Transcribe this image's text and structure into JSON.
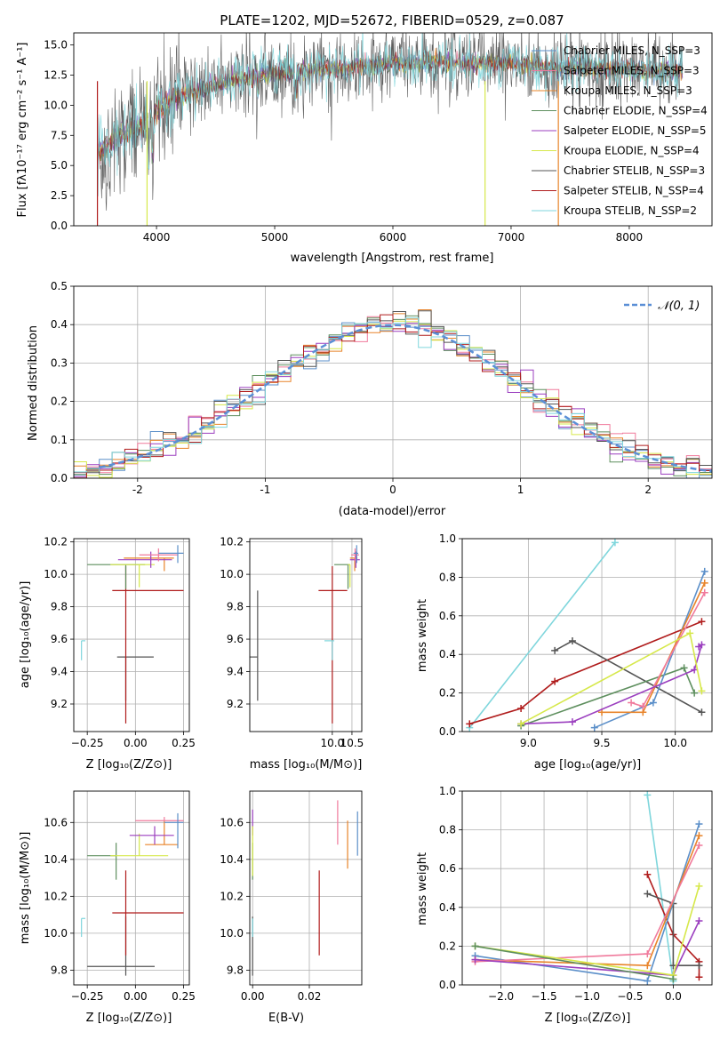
{
  "chart_data": [
    {
      "id": "spectrum",
      "type": "line",
      "title": "PLATE=1202, MJD=52672, FIBERID=0529, z=0.087",
      "xlabel": "wavelength [Angstrom, rest frame]",
      "ylabel": "Flux [fλ10⁻¹⁷ erg cm⁻² s⁻¹ A⁻¹]",
      "xlim": [
        3300,
        8700
      ],
      "ylim": [
        0,
        16
      ],
      "xticks": [
        4000,
        5000,
        6000,
        7000,
        8000
      ],
      "yticks": [
        0.0,
        2.5,
        5.0,
        7.5,
        10.0,
        12.5,
        15.0
      ],
      "legend_position": "right",
      "continuum": [
        [
          3500,
          6.0
        ],
        [
          3700,
          7.5
        ],
        [
          3900,
          8.5
        ],
        [
          4000,
          9.5
        ],
        [
          4200,
          10.8
        ],
        [
          4400,
          11.3
        ],
        [
          4600,
          12.0
        ],
        [
          4800,
          12.4
        ],
        [
          5000,
          12.7
        ],
        [
          5200,
          12.8
        ],
        [
          5400,
          13.0
        ],
        [
          5600,
          13.1
        ],
        [
          5800,
          13.3
        ],
        [
          6000,
          13.5
        ],
        [
          6200,
          13.5
        ],
        [
          6400,
          13.7
        ],
        [
          6600,
          13.4
        ],
        [
          6800,
          13.5
        ],
        [
          7000,
          13.5
        ],
        [
          7200,
          13.3
        ],
        [
          7400,
          13.0
        ],
        [
          7600,
          13.2
        ],
        [
          7800,
          13.0
        ],
        [
          8000,
          13.0
        ],
        [
          8200,
          12.8
        ],
        [
          8400,
          12.9
        ]
      ],
      "series": [
        {
          "name": "Chabrier MILES, N_SSP=3",
          "color": "#5b8fc9"
        },
        {
          "name": "Salpeter MILES, N_SSP=3",
          "color": "#f07a9c"
        },
        {
          "name": "Kroupa MILES, N_SSP=3",
          "color": "#e8842a"
        },
        {
          "name": "Chabrier ELODIE, N_SSP=4",
          "color": "#5e8f5e"
        },
        {
          "name": "Salpeter ELODIE, N_SSP=5",
          "color": "#9b3fbf"
        },
        {
          "name": "Kroupa ELODIE, N_SSP=4",
          "color": "#d6e84a"
        },
        {
          "name": "Chabrier STELIB, N_SSP=3",
          "color": "#555555"
        },
        {
          "name": "Salpeter STELIB, N_SSP=4",
          "color": "#b01c1c"
        },
        {
          "name": "Kroupa STELIB, N_SSP=2",
          "color": "#7fd6dc"
        }
      ]
    },
    {
      "id": "residuals",
      "type": "line",
      "xlabel": "(data-model)/error",
      "ylabel": "Normed distribution",
      "xlim": [
        -2.5,
        2.5
      ],
      "ylim": [
        0,
        0.5
      ],
      "xticks": [
        -2,
        -1,
        0,
        1,
        2
      ],
      "yticks": [
        0.0,
        0.1,
        0.2,
        0.3,
        0.4,
        0.5
      ],
      "legend": "𝒩(0, 1)",
      "legend_color": "#5b8fd6",
      "legend_position": "top-right",
      "grid": true
    },
    {
      "id": "age_vs_Z",
      "type": "scatter",
      "xlabel": "Z [log₁₀(Z/Z⊙)]",
      "ylabel": "age  [log₁₀(age/yr)]",
      "xlim": [
        -0.32,
        0.28
      ],
      "ylim": [
        9.03,
        10.22
      ],
      "xticks": [
        -0.25,
        0.0,
        0.25
      ],
      "xtick_labels": [
        "−0.25",
        "0.00",
        "0.25"
      ],
      "yticks": [
        9.2,
        9.4,
        9.6,
        9.8,
        10.0,
        10.2
      ],
      "points": [
        {
          "color": "#555555",
          "x": 0.005,
          "xerr": [
            0.1,
            0.09
          ],
          "y": 9.49,
          "yerr": [
            0.0,
            0.0
          ]
        },
        {
          "color": "#555555",
          "x": -0.05,
          "xerr": [
            0.0,
            0.0
          ],
          "y": 9.49,
          "yerr": [
            0.27,
            0.0
          ]
        },
        {
          "color": "#b01c1c",
          "x": -0.05,
          "xerr": [
            0.07,
            0.3
          ],
          "y": 9.9,
          "yerr": [
            0.82,
            0.15
          ]
        },
        {
          "color": "#7fd6dc",
          "x": -0.28,
          "xerr": [
            0.0,
            0.02
          ],
          "y": 9.59,
          "yerr": [
            0.12,
            0.0
          ]
        },
        {
          "color": "#5e8f5e",
          "x": -0.05,
          "xerr": [
            0.2,
            0.1
          ],
          "y": 10.06,
          "yerr": [
            0.15,
            0.0
          ]
        },
        {
          "color": "#d6e84a",
          "x": 0.02,
          "xerr": [
            0.15,
            0.08
          ],
          "y": 10.06,
          "yerr": [
            0.14,
            0.0
          ]
        },
        {
          "color": "#e8842a",
          "x": 0.15,
          "xerr": [
            0.21,
            0.05
          ],
          "y": 10.1,
          "yerr": [
            0.08,
            0.0
          ]
        },
        {
          "color": "#9b3fbf",
          "x": 0.08,
          "xerr": [
            0.17,
            0.11
          ],
          "y": 10.09,
          "yerr": [
            0.05,
            0.05
          ]
        },
        {
          "color": "#f07a9c",
          "x": 0.12,
          "xerr": [
            0.1,
            0.1
          ],
          "y": 10.12,
          "yerr": [
            0.04,
            0.04
          ]
        },
        {
          "color": "#5b8fc9",
          "x": 0.22,
          "xerr": [
            0.1,
            0.03
          ],
          "y": 10.13,
          "yerr": [
            0.06,
            0.05
          ]
        }
      ]
    },
    {
      "id": "age_vs_mass",
      "type": "scatter",
      "xlabel": "mass [log₁₀(M/M⊙)]",
      "xlim": [
        7.9,
        10.75
      ],
      "ylim": [
        9.03,
        10.22
      ],
      "xticks": [
        10.0,
        10.5
      ],
      "xtick_labels": [
        "10.0",
        "10.5"
      ],
      "yticks": [
        9.2,
        9.4,
        9.6,
        9.8,
        10.0,
        10.2
      ],
      "points": [
        {
          "color": "#555555",
          "x": 8.1,
          "xerr": [
            0.3,
            0.0
          ],
          "y": 9.49,
          "yerr": [
            0.27,
            0.0
          ]
        },
        {
          "color": "#555555",
          "x": 8.1,
          "xerr": [
            0.0,
            0.0
          ],
          "y": 9.49,
          "yerr": [
            0.0,
            0.41
          ]
        },
        {
          "color": "#b01c1c",
          "x": 10.0,
          "xerr": [
            0.35,
            0.38
          ],
          "y": 9.9,
          "yerr": [
            0.82,
            0.15
          ]
        },
        {
          "color": "#7fd6dc",
          "x": 10.0,
          "xerr": [
            0.2,
            0.05
          ],
          "y": 9.59,
          "yerr": [
            0.12,
            0.0
          ]
        },
        {
          "color": "#5e8f5e",
          "x": 10.4,
          "xerr": [
            0.35,
            0.05
          ],
          "y": 10.06,
          "yerr": [
            0.15,
            0.0
          ]
        },
        {
          "color": "#d6e84a",
          "x": 10.45,
          "xerr": [
            0.05,
            0.0
          ],
          "y": 10.06,
          "yerr": [
            0.14,
            0.0
          ]
        },
        {
          "color": "#e8842a",
          "x": 10.57,
          "xerr": [
            0.12,
            0.07
          ],
          "y": 10.1,
          "yerr": [
            0.08,
            0.0
          ]
        },
        {
          "color": "#9b3fbf",
          "x": 10.6,
          "xerr": [
            0.15,
            0.1
          ],
          "y": 10.09,
          "yerr": [
            0.05,
            0.05
          ]
        },
        {
          "color": "#f07a9c",
          "x": 10.58,
          "xerr": [
            0.1,
            0.1
          ],
          "y": 10.12,
          "yerr": [
            0.04,
            0.04
          ]
        },
        {
          "color": "#5b8fc9",
          "x": 10.62,
          "xerr": [
            0.08,
            0.04
          ],
          "y": 10.13,
          "yerr": [
            0.06,
            0.05
          ]
        }
      ]
    },
    {
      "id": "mass_weight_vs_age",
      "type": "line",
      "xlabel": "age  [log₁₀(age/yr)]",
      "ylabel": "mass weight",
      "xlim": [
        8.55,
        10.25
      ],
      "ylim": [
        0,
        1
      ],
      "xticks": [
        9.0,
        9.5,
        10.0
      ],
      "xtick_labels": [
        "9.0",
        "9.5",
        "10.0"
      ],
      "yticks": [
        0.0,
        0.2,
        0.4,
        0.6,
        0.8,
        1.0
      ],
      "series": [
        {
          "color": "#7fd6dc",
          "x": [
            8.6,
            9.59
          ],
          "y": [
            0.02,
            0.98
          ]
        },
        {
          "color": "#b01c1c",
          "x": [
            8.6,
            8.95,
            9.18,
            10.18
          ],
          "y": [
            0.04,
            0.12,
            0.26,
            0.57
          ]
        },
        {
          "color": "#555555",
          "x": [
            9.18,
            9.3,
            10.18
          ],
          "y": [
            0.42,
            0.47,
            0.1
          ]
        },
        {
          "color": "#5e8f5e",
          "x": [
            8.95,
            10.06,
            10.13
          ],
          "y": [
            0.03,
            0.33,
            0.2
          ]
        },
        {
          "color": "#5b8fc9",
          "x": [
            9.45,
            9.85,
            10.2
          ],
          "y": [
            0.02,
            0.15,
            0.83
          ]
        },
        {
          "color": "#e8842a",
          "x": [
            9.5,
            9.78,
            10.2
          ],
          "y": [
            0.1,
            0.1,
            0.77
          ]
        },
        {
          "color": "#f07a9c",
          "x": [
            9.7,
            9.78,
            10.2
          ],
          "y": [
            0.15,
            0.13,
            0.72
          ]
        },
        {
          "color": "#9b3fbf",
          "x": [
            8.95,
            9.3,
            10.13,
            10.18,
            10.16
          ],
          "y": [
            0.04,
            0.05,
            0.32,
            0.45,
            0.44
          ]
        },
        {
          "color": "#d6e84a",
          "x": [
            8.95,
            10.1,
            10.18
          ],
          "y": [
            0.04,
            0.51,
            0.21
          ]
        }
      ]
    },
    {
      "id": "mass_vs_Z",
      "type": "scatter",
      "xlabel": "Z [log₁₀(Z/Z⊙)]",
      "ylabel": "mass [log₁₀(M/M⊙)]",
      "xlim": [
        -0.32,
        0.28
      ],
      "ylim": [
        9.72,
        10.77
      ],
      "xticks": [
        -0.25,
        0.0,
        0.25
      ],
      "xtick_labels": [
        "−0.25",
        "0.00",
        "0.25"
      ],
      "yticks": [
        9.8,
        10.0,
        10.2,
        10.4,
        10.6
      ],
      "points": [
        {
          "color": "#555555",
          "x": -0.05,
          "xerr": [
            0.2,
            0.15
          ],
          "y": 9.82,
          "yerr": [
            0.05,
            0.27
          ]
        },
        {
          "color": "#b01c1c",
          "x": -0.05,
          "xerr": [
            0.07,
            0.3
          ],
          "y": 10.11,
          "yerr": [
            0.23,
            0.23
          ]
        },
        {
          "color": "#7fd6dc",
          "x": -0.28,
          "xerr": [
            0.0,
            0.02
          ],
          "y": 10.08,
          "yerr": [
            0.1,
            0.0
          ]
        },
        {
          "color": "#5e8f5e",
          "x": -0.1,
          "xerr": [
            0.15,
            0.0
          ],
          "y": 10.42,
          "yerr": [
            0.13,
            0.07
          ]
        },
        {
          "color": "#d6e84a",
          "x": 0.02,
          "xerr": [
            0.15,
            0.15
          ],
          "y": 10.42,
          "yerr": [
            0.0,
            0.12
          ]
        },
        {
          "color": "#e8842a",
          "x": 0.15,
          "xerr": [
            0.1,
            0.07
          ],
          "y": 10.48,
          "yerr": [
            0.0,
            0.13
          ]
        },
        {
          "color": "#9b3fbf",
          "x": 0.1,
          "xerr": [
            0.13,
            0.1
          ],
          "y": 10.53,
          "yerr": [
            0.05,
            0.05
          ]
        },
        {
          "color": "#f07a9c",
          "x": 0.15,
          "xerr": [
            0.15,
            0.1
          ],
          "y": 10.61,
          "yerr": [
            0.0,
            0.02
          ]
        },
        {
          "color": "#5b8fc9",
          "x": 0.22,
          "xerr": [
            0.07,
            0.03
          ],
          "y": 10.6,
          "yerr": [
            0.14,
            0.05
          ]
        }
      ]
    },
    {
      "id": "mass_vs_EBV",
      "type": "scatter",
      "xlabel": "E(B-V)",
      "xlim": [
        -0.001,
        0.0385
      ],
      "ylim": [
        9.72,
        10.77
      ],
      "xticks": [
        0.0,
        0.02
      ],
      "xtick_labels": [
        "0.00",
        "0.02"
      ],
      "yticks": [
        9.8,
        10.0,
        10.2,
        10.4,
        10.6
      ],
      "points": [
        {
          "color": "#555555",
          "x": 0.0,
          "y": 9.82,
          "yerr": [
            0.05,
            0.27
          ]
        },
        {
          "color": "#7fd6dc",
          "x": 0.0,
          "y": 10.08,
          "yerr": [
            0.1,
            0.0
          ]
        },
        {
          "color": "#5e8f5e",
          "x": 0.0,
          "y": 10.42,
          "yerr": [
            0.13,
            0.07
          ]
        },
        {
          "color": "#9b3fbf",
          "x": 0.0,
          "y": 10.6,
          "yerr": [
            0.07,
            0.07
          ]
        },
        {
          "color": "#d6e84a",
          "x": 0.0,
          "y": 10.43,
          "yerr": [
            0.12,
            0.15
          ]
        },
        {
          "color": "#b01c1c",
          "x": 0.0235,
          "y": 10.11,
          "yerr": [
            0.23,
            0.23
          ]
        },
        {
          "color": "#f07a9c",
          "x": 0.03,
          "y": 10.6,
          "yerr": [
            0.12,
            0.12
          ]
        },
        {
          "color": "#e8842a",
          "x": 0.0335,
          "y": 10.48,
          "yerr": [
            0.13,
            0.13
          ]
        },
        {
          "color": "#5b8fc9",
          "x": 0.037,
          "y": 10.54,
          "yerr": [
            0.12,
            0.12
          ]
        }
      ]
    },
    {
      "id": "mass_weight_vs_Z",
      "type": "line",
      "xlabel": "Z [log₁₀(Z/Z⊙)]",
      "ylabel": "mass weight",
      "xlim": [
        -2.45,
        0.45
      ],
      "ylim": [
        0,
        1
      ],
      "xticks": [
        -2.0,
        -1.5,
        -1.0,
        -0.5,
        0.0
      ],
      "xtick_labels": [
        "−2.0",
        "−1.5",
        "−1.0",
        "−0.5",
        "0.0"
      ],
      "yticks": [
        0.0,
        0.2,
        0.4,
        0.6,
        0.8,
        1.0
      ],
      "series": [
        {
          "color": "#7fd6dc",
          "x": [
            -0.3,
            0.0
          ],
          "y": [
            0.98,
            0.02
          ]
        },
        {
          "color": "#b01c1c",
          "x": [
            -0.3,
            0.0,
            0.3,
            0.3
          ],
          "y": [
            0.57,
            0.26,
            0.12,
            0.04
          ]
        },
        {
          "color": "#555555",
          "x": [
            -0.3,
            0.0,
            0.0,
            0.3
          ],
          "y": [
            0.47,
            0.42,
            0.1,
            0.1
          ]
        },
        {
          "color": "#5b8fc9",
          "x": [
            -2.3,
            -0.3,
            0.3
          ],
          "y": [
            0.15,
            0.02,
            0.83
          ]
        },
        {
          "color": "#e8842a",
          "x": [
            -2.3,
            -0.3,
            0.3
          ],
          "y": [
            0.13,
            0.1,
            0.77
          ]
        },
        {
          "color": "#f07a9c",
          "x": [
            -2.3,
            -0.3,
            0.3
          ],
          "y": [
            0.12,
            0.16,
            0.72
          ]
        },
        {
          "color": "#9b3fbf",
          "x": [
            -2.3,
            0.0,
            0.3
          ],
          "y": [
            0.13,
            0.05,
            0.33
          ]
        },
        {
          "color": "#d6e84a",
          "x": [
            -2.3,
            0.0,
            0.3
          ],
          "y": [
            0.2,
            0.05,
            0.51
          ]
        },
        {
          "color": "#5e8f5e",
          "x": [
            -2.3,
            0.0
          ],
          "y": [
            0.2,
            0.03
          ]
        }
      ]
    }
  ]
}
